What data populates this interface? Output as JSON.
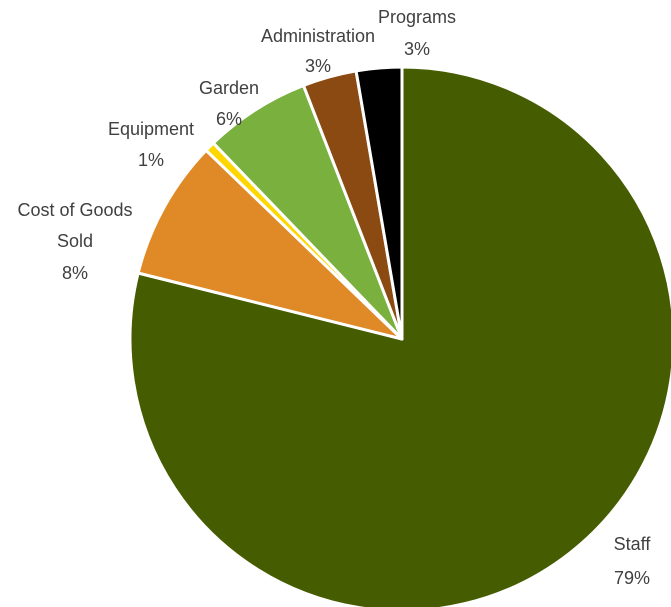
{
  "chart_data": {
    "type": "pie",
    "start_angle_deg": 0,
    "direction": "clockwise",
    "slices": [
      {
        "name": "Staff",
        "percent_label": "79%",
        "value": 78.9,
        "color": "#455c00"
      },
      {
        "name": "Cost of Goods Sold",
        "percent_label": "8%",
        "value": 8.3,
        "color": "#e08a27"
      },
      {
        "name": "Equipment",
        "percent_label": "1%",
        "value": 0.6,
        "color": "#ffd700"
      },
      {
        "name": "Garden",
        "percent_label": "6%",
        "value": 6.3,
        "color": "#79b03e"
      },
      {
        "name": "Administration",
        "percent_label": "3%",
        "value": 3.2,
        "color": "#8b4a12"
      },
      {
        "name": "Programs",
        "percent_label": "3%",
        "value": 2.7,
        "color": "#000000"
      }
    ],
    "slice_border_color": "#ffffff",
    "legend": "none",
    "data_labels": "outside, category name and percentage"
  }
}
